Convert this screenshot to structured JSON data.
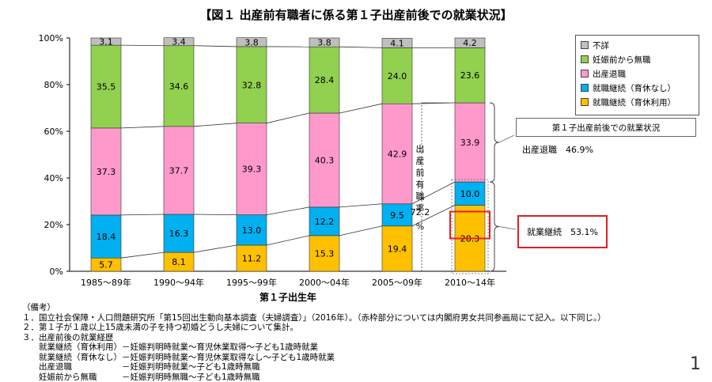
{
  "title": "【図１ 出産前有職者に係る第１子出産前後での就業状況】",
  "chart_data": {
    "type": "bar",
    "stacked": true,
    "categories": [
      "1985～89年",
      "1990～94年",
      "1995～99年",
      "2000～04年",
      "2005～09年",
      "2010～14年"
    ],
    "series": [
      {
        "name": "就職継続（育休利用）",
        "color": "#ffc000",
        "values": [
          5.7,
          8.1,
          11.2,
          15.3,
          19.4,
          28.3
        ]
      },
      {
        "name": "就職継続（育休なし）",
        "color": "#00b0f0",
        "values": [
          18.4,
          16.3,
          13.0,
          12.2,
          9.5,
          10.0
        ]
      },
      {
        "name": "出産退職",
        "color": "#ff99cc",
        "values": [
          37.3,
          37.7,
          39.3,
          40.3,
          42.9,
          33.9
        ]
      },
      {
        "name": "妊娠前から無職",
        "color": "#92d050",
        "values": [
          35.5,
          34.6,
          32.8,
          28.4,
          24.0,
          23.6
        ]
      },
      {
        "name": "不詳",
        "color": "#bfbfbf",
        "values": [
          3.1,
          3.4,
          3.8,
          3.8,
          4.1,
          4.2
        ]
      }
    ],
    "yticks": [
      "0%",
      "20%",
      "40%",
      "60%",
      "80%",
      "100%"
    ],
    "ylim": [
      0,
      100
    ],
    "xlabel": "第１子出生年",
    "legend_order": [
      "不詳",
      "妊娠前から無職",
      "出産退職",
      "就職継続（育休なし）",
      "就職継続（育休利用）"
    ],
    "legend_position": "top-right",
    "annotation_rate_label": "出産前有職率",
    "annotation_rate_value": "72.2",
    "annotation_rate_unit": "%"
  },
  "status_box": "第１子出産前後での就業状況",
  "retire_label": "出産退職　46.9%",
  "continue_label": "就業継続　53.1%",
  "notes": [
    "（備考）",
    "１．国立社会保障・人口問題研究所「第15回出生動向基本調査（夫婦調査）」（2016年）。（赤枠部分については内閣府男女共同参画局にて記入。以下同じ。）",
    "２．第１子が１歳以上15歳未満の子を持つ初婚どうし夫婦について集計。",
    "３．出産前後の就業経歴",
    "　　就業継続（育休利用）－妊娠判明時就業～育児休業取得～子ども1歳時就業",
    "　　就業継続（育休なし）－妊娠判明時就業～育児休業取得なし～子ども1歳時就業",
    "　　出産退職　　　　　　－妊娠判明時就業～子ども1歳時無職",
    "　　妊娠前から無職　　　－妊娠判明時無職～子ども1歳時無職"
  ],
  "page_number": "1"
}
